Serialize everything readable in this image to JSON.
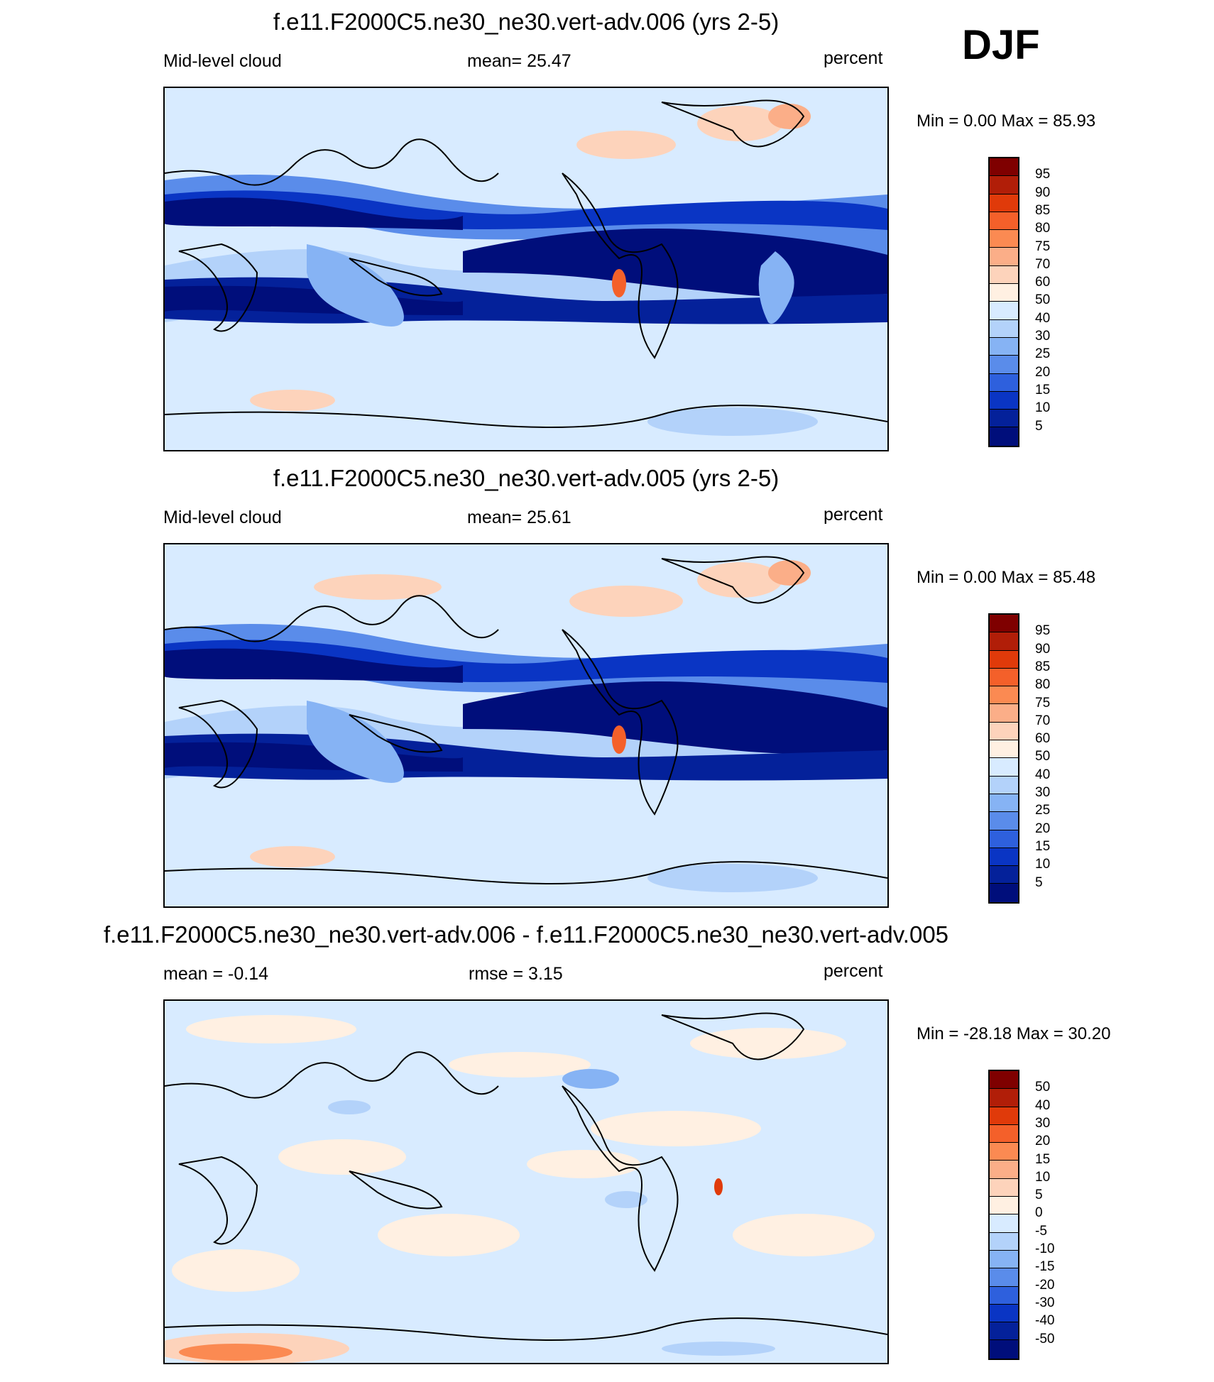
{
  "season_label": "DJF",
  "panels": [
    {
      "title": "f.e11.F2000C5.ne30_ne30.vert-adv.006 (yrs 2-5)",
      "left_label": "Mid-level cloud",
      "center_label": "mean=  25.47",
      "right_label": "percent",
      "minmax": "Min =    0.00 Max =  85.93",
      "colorbar_levels": [
        "95",
        "90",
        "85",
        "80",
        "75",
        "70",
        "60",
        "50",
        "40",
        "30",
        "25",
        "20",
        "15",
        "10",
        "5"
      ],
      "colors": [
        "#7f0000",
        "#b11e08",
        "#e03a0a",
        "#f4602a",
        "#fb8a52",
        "#fbae88",
        "#fdd3bb",
        "#fff0e2",
        "#d8ebff",
        "#b3d2fa",
        "#86b3f4",
        "#5a8cea",
        "#2e60dd",
        "#0a35c4",
        "#04219a",
        "#000e7b"
      ]
    },
    {
      "title": "f.e11.F2000C5.ne30_ne30.vert-adv.005 (yrs 2-5)",
      "left_label": "Mid-level cloud",
      "center_label": "mean=  25.61",
      "right_label": "percent",
      "minmax": "Min =    0.00 Max =  85.48",
      "colorbar_levels": [
        "95",
        "90",
        "85",
        "80",
        "75",
        "70",
        "60",
        "50",
        "40",
        "30",
        "25",
        "20",
        "15",
        "10",
        "5"
      ],
      "colors": [
        "#7f0000",
        "#b11e08",
        "#e03a0a",
        "#f4602a",
        "#fb8a52",
        "#fbae88",
        "#fdd3bb",
        "#fff0e2",
        "#d8ebff",
        "#b3d2fa",
        "#86b3f4",
        "#5a8cea",
        "#2e60dd",
        "#0a35c4",
        "#04219a",
        "#000e7b"
      ]
    },
    {
      "title": "f.e11.F2000C5.ne30_ne30.vert-adv.006 - f.e11.F2000C5.ne30_ne30.vert-adv.005",
      "left_label": "mean =  -0.14",
      "center_label": "rmse =   3.15",
      "right_label": "percent",
      "minmax": "Min = -28.18 Max =  30.20",
      "colorbar_levels": [
        "50",
        "40",
        "30",
        "20",
        "15",
        "10",
        "5",
        "0",
        "-5",
        "-10",
        "-15",
        "-20",
        "-30",
        "-40",
        "-50"
      ],
      "colors": [
        "#7f0000",
        "#b11e08",
        "#e03a0a",
        "#f4602a",
        "#fb8a52",
        "#fbae88",
        "#fdd3bb",
        "#fff0e2",
        "#d8ebff",
        "#b3d2fa",
        "#86b3f4",
        "#5a8cea",
        "#2e60dd",
        "#0a35c4",
        "#04219a",
        "#000e7b"
      ]
    }
  ]
}
